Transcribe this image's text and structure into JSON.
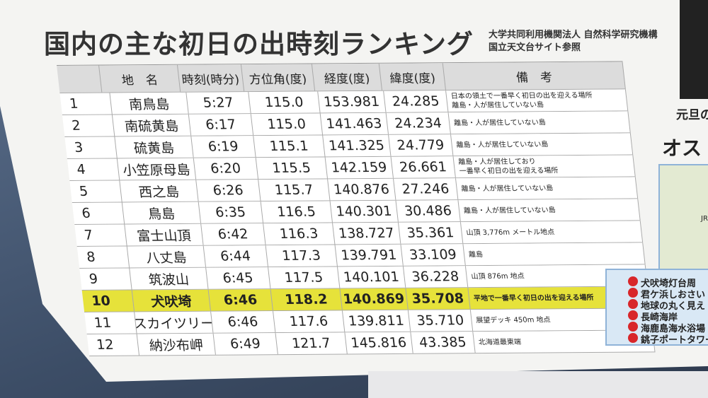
{
  "title": "国内の主な初日の出時刻ランキング",
  "source": [
    "大学共同利用機関法人 自然科学研究機構",
    "国立天文台サイト参照"
  ],
  "table": {
    "header": [
      "",
      "地　名",
      "時刻(時分)",
      "方位角(度)",
      "経度(度)",
      "緯度(度)",
      "備　考"
    ],
    "rows": [
      [
        "1",
        "南鳥島",
        "5:27",
        "115.0",
        "153.981",
        "24.285",
        "日本の領土で一番早く初日の出を迎える場所\n離島・人が居住していない島"
      ],
      [
        "2",
        "南硫黄島",
        "6:17",
        "115.0",
        "141.463",
        "24.234",
        "離島・人が居住していない島"
      ],
      [
        "3",
        "硫黄島",
        "6:19",
        "115.1",
        "141.325",
        "24.779",
        "離島・人が居住していない島"
      ],
      [
        "4",
        "小笠原母島",
        "6:20",
        "115.5",
        "142.159",
        "26.661",
        "離島・人が居住しており\n一番早く初日の出を迎える場所"
      ],
      [
        "5",
        "西之島",
        "6:26",
        "115.7",
        "140.876",
        "27.246",
        "離島・人が居住していない島"
      ],
      [
        "6",
        "鳥島",
        "6:35",
        "116.5",
        "140.301",
        "30.486",
        "離島・人が居住していない島"
      ],
      [
        "7",
        "富士山頂",
        "6:42",
        "116.3",
        "138.727",
        "35.361",
        "山頂 3,776m メートル地点"
      ],
      [
        "8",
        "八丈島",
        "6:44",
        "117.3",
        "139.791",
        "33.109",
        "離島"
      ],
      [
        "9",
        "筑波山",
        "6:45",
        "117.5",
        "140.101",
        "36.228",
        "山頂 876m 地点"
      ],
      [
        "10",
        "犬吠埼",
        "6:46",
        "118.2",
        "140.869",
        "35.708",
        "平地で一番早く初日の出を迎える場所"
      ],
      [
        "11",
        "スカイツリー",
        "6:46",
        "117.6",
        "139.811",
        "35.710",
        "展望デッキ 450m 地点"
      ],
      [
        "12",
        "納沙布岬",
        "6:49",
        "121.7",
        "145.816",
        "43.385",
        "北海道最東端"
      ]
    ],
    "highlight_row": 9
  },
  "side_panel": {
    "caption": "元旦の",
    "heading": "オス",
    "map_label": "JR",
    "spots": [
      "犬吠埼灯台周",
      "君ケ浜しおさい",
      "地球の丸く見え",
      "長崎海岸",
      "海鹿島海水浴場",
      "銚子ポートタワー・"
    ]
  }
}
